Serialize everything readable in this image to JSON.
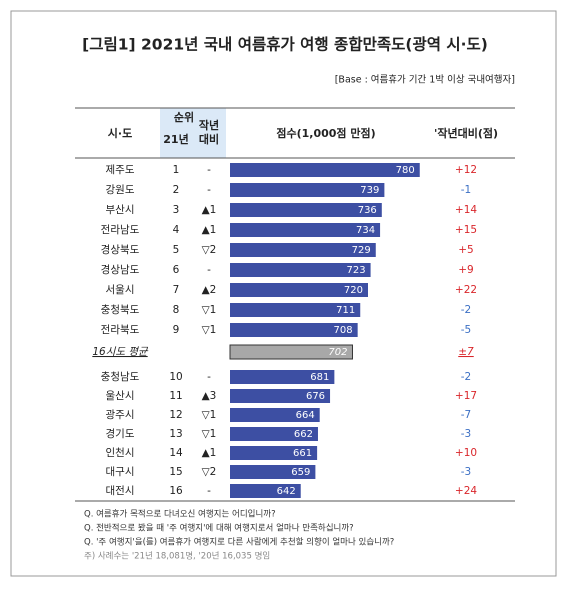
{
  "chart_data": {
    "type": "bar",
    "title": "[그림1] 2021년 국내 여름휴가 여행 종합만족도(광역 시·도)",
    "base_note": "[Base : 여름휴가 기간 1박 이상 국내여행자]",
    "headers": {
      "region": "시·도",
      "rank": "순위",
      "rank_year": "21년",
      "rank_change": "작년\n대비",
      "score": "점수(1,000점 만점)",
      "yoy": "'작년대비(점)"
    },
    "categories": [
      "제주도",
      "강원도",
      "부산시",
      "전라남도",
      "경상북도",
      "경상남도",
      "서울시",
      "충청북도",
      "전라북도",
      "충청남도",
      "울산시",
      "광주시",
      "경기도",
      "인천시",
      "대구시",
      "대전시"
    ],
    "ranks": [
      1,
      2,
      3,
      4,
      5,
      6,
      7,
      8,
      9,
      10,
      11,
      12,
      13,
      14,
      15,
      16
    ],
    "rank_changes": [
      "-",
      "-",
      "▲1",
      "▲1",
      "▽2",
      "-",
      "▲2",
      "▽1",
      "▽1",
      "-",
      "▲3",
      "▽1",
      "▽1",
      "▲1",
      "▽2",
      "-"
    ],
    "values": [
      780,
      739,
      736,
      734,
      729,
      723,
      720,
      711,
      708,
      681,
      676,
      664,
      662,
      661,
      659,
      642
    ],
    "yoy": [
      "+12",
      "-1",
      "+14",
      "+15",
      "+5",
      "+9",
      "+22",
      "-2",
      "-5",
      "-2",
      "+17",
      "-7",
      "-3",
      "+10",
      "-3",
      "+24"
    ],
    "average": {
      "label": "16시도 평균",
      "value": 702,
      "yoy": "±7"
    },
    "color": "#3d4fa3",
    "average_color": "#a8a8a8",
    "up_color": "#d9262b",
    "down_color": "#3b6fc4",
    "xlim": [
      560,
      800
    ],
    "notes": [
      "Q. 여름휴가 목적으로 다녀오신 여행지는 어디입니까?",
      "Q. 전반적으로 봤을 때 '주 여행지'에 대해 여행지로서 얼마나 만족하십니까?",
      "Q. '주 여행지'을(를) 여름휴가 여행지로 다른 사람에게 추천할 의향이 얼마나 있습니까?",
      "주) 사례수는 '21년 18,081명, '20년 16,035 명임"
    ]
  }
}
